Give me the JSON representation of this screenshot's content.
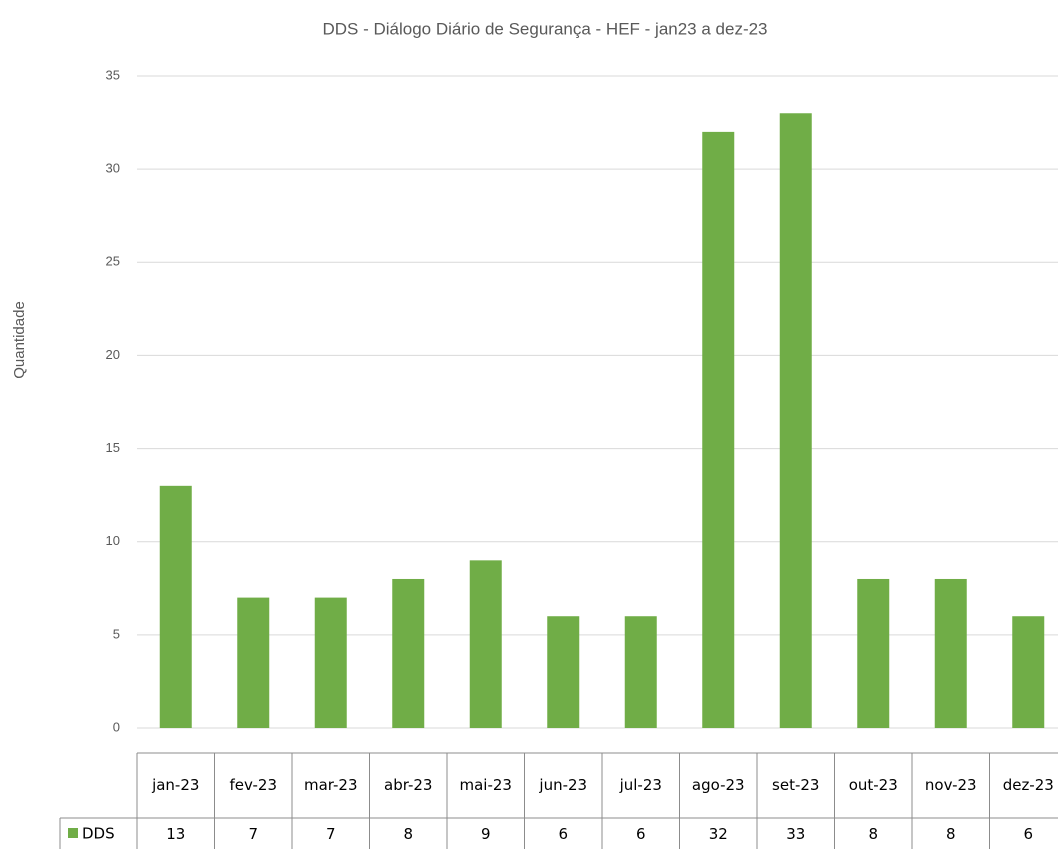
{
  "chart_data": {
    "type": "bar",
    "title": "DDS - Diálogo Diário de Segurança  - HEF - jan23 a dez-23",
    "y_label": "Quantidade",
    "categories": [
      "jan-23",
      "fev-23",
      "mar-23",
      "abr-23",
      "mai-23",
      "jun-23",
      "jul-23",
      "ago-23",
      "set-23",
      "out-23",
      "nov-23",
      "dez-23"
    ],
    "series": [
      {
        "name": "DDS",
        "color": "#70ad47",
        "values": [
          13,
          7,
          7,
          8,
          9,
          6,
          6,
          32,
          33,
          8,
          8,
          6
        ]
      }
    ],
    "ylim": [
      0,
      35
    ],
    "yticks": [
      0,
      5,
      10,
      15,
      20,
      25,
      30,
      35
    ],
    "grid": true,
    "data_table": true
  }
}
